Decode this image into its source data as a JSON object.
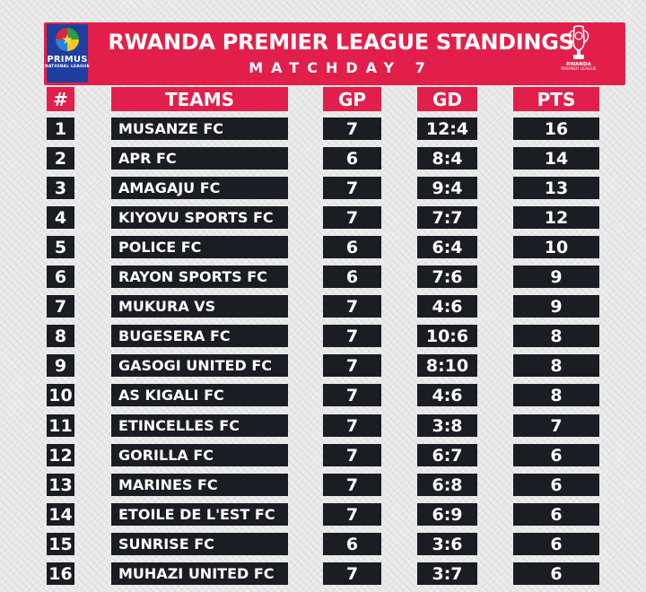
{
  "header": {
    "title": "RWANDA PREMIER LEAGUE STANDINGS",
    "subtitle": "MATCHDAY 7",
    "sponsor_brand": "PRIMUS",
    "sponsor_sub": "NATIONAL LEAGUE",
    "trophy_line1": "RWANDA",
    "trophy_line2": "PREMIER LEAGUE"
  },
  "columns": {
    "num": "#",
    "team": "TEAMS",
    "gp": "GP",
    "gd": "GD",
    "pts": "PTS"
  },
  "colors": {
    "accent": "#e21f4a",
    "row_bg": "#1b1d24",
    "sponsor_bg": "#1f3fa0"
  },
  "rows": [
    {
      "pos": "1",
      "team": "MUSANZE FC",
      "gp": "7",
      "gd": "12:4",
      "pts": "16"
    },
    {
      "pos": "2",
      "team": "APR FC",
      "gp": "6",
      "gd": "8:4",
      "pts": "14"
    },
    {
      "pos": "3",
      "team": "AMAGAJU FC",
      "gp": "7",
      "gd": "9:4",
      "pts": "13"
    },
    {
      "pos": "4",
      "team": "KIYOVU SPORTS FC",
      "gp": "7",
      "gd": "7:7",
      "pts": "12"
    },
    {
      "pos": "5",
      "team": "POLICE FC",
      "gp": "6",
      "gd": "6:4",
      "pts": "10"
    },
    {
      "pos": "6",
      "team": "RAYON SPORTS FC",
      "gp": "6",
      "gd": "7:6",
      "pts": "9"
    },
    {
      "pos": "7",
      "team": "MUKURA VS",
      "gp": "7",
      "gd": "4:6",
      "pts": "9"
    },
    {
      "pos": "8",
      "team": "BUGESERA FC",
      "gp": "7",
      "gd": "10:6",
      "pts": "8"
    },
    {
      "pos": "9",
      "team": "GASOGI UNITED FC",
      "gp": "7",
      "gd": "8:10",
      "pts": "8"
    },
    {
      "pos": "10",
      "team": "AS KIGALI FC",
      "gp": "7",
      "gd": "4:6",
      "pts": "8"
    },
    {
      "pos": "11",
      "team": "ETINCELLES FC",
      "gp": "7",
      "gd": "3:8",
      "pts": "7"
    },
    {
      "pos": "12",
      "team": "GORILLA FC",
      "gp": "7",
      "gd": "6:7",
      "pts": "6"
    },
    {
      "pos": "13",
      "team": "MARINES FC",
      "gp": "7",
      "gd": "6:8",
      "pts": "6"
    },
    {
      "pos": "14",
      "team": "ETOILE DE L'EST FC",
      "gp": "7",
      "gd": "6:9",
      "pts": "6"
    },
    {
      "pos": "15",
      "team": "SUNRISE FC",
      "gp": "6",
      "gd": "3:6",
      "pts": "6"
    },
    {
      "pos": "16",
      "team": "MUHAZI UNITED FC",
      "gp": "7",
      "gd": "3:7",
      "pts": "6"
    }
  ]
}
